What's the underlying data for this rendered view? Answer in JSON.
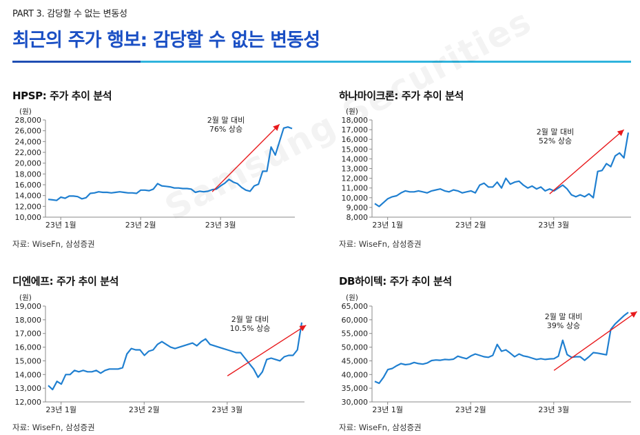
{
  "header": {
    "eyebrow": "PART 3. 감당할 수 없는 변동성",
    "title": "최근의 주가 행보: 감당할 수 없는 변동성"
  },
  "watermark": "Samsung Securities",
  "colors": {
    "line": "#1f7fd0",
    "arrow": "#e8191c",
    "accent": "#1a4fc4",
    "rule": "#2fb3dd"
  },
  "panels": [
    {
      "title": "HPSP: 주가 추이 분석",
      "source": "자료: WiseFn, 삼성증권",
      "chart_data": {
        "type": "line",
        "unit_label": "(원)",
        "ylim": [
          10000,
          28000
        ],
        "yticks": [
          10000,
          12000,
          14000,
          16000,
          18000,
          20000,
          22000,
          24000,
          26000,
          28000
        ],
        "ytick_labels": [
          "10,000",
          "12,000",
          "14,000",
          "16,000",
          "18,000",
          "20,000",
          "22,000",
          "24,000",
          "26,000",
          "28,000"
        ],
        "xtick_labels": [
          "23년 1월",
          "23년 2월",
          "23년 3월"
        ],
        "xtick_index": [
          2,
          21,
          40
        ],
        "annotation": "2월 말 대비\n76% 상승",
        "arrow": {
          "from": [
            39,
            14700
          ],
          "to": [
            55,
            27200
          ]
        },
        "values": [
          13300,
          13200,
          13100,
          13700,
          13500,
          13900,
          13900,
          13800,
          13400,
          13600,
          14400,
          14500,
          14700,
          14600,
          14600,
          14500,
          14600,
          14700,
          14600,
          14500,
          14500,
          14400,
          15000,
          15000,
          14900,
          15200,
          16200,
          15800,
          15700,
          15600,
          15400,
          15400,
          15300,
          15300,
          15200,
          14600,
          14800,
          14700,
          14800,
          15100,
          15200,
          15800,
          16300,
          17000,
          16500,
          16200,
          15500,
          15000,
          14800,
          15800,
          16100,
          18500,
          18500,
          23000,
          21500,
          24000,
          26500,
          26700,
          26400
        ]
      }
    },
    {
      "title": "하나마이크론: 주가 추이 분석",
      "source": "자료: WiseFn, 삼성증권",
      "chart_data": {
        "type": "line",
        "unit_label": "(원)",
        "ylim": [
          8000,
          18000
        ],
        "yticks": [
          8000,
          9000,
          10000,
          11000,
          12000,
          13000,
          14000,
          15000,
          16000,
          17000,
          18000
        ],
        "ytick_labels": [
          "8,000",
          "9,000",
          "10,000",
          "11,000",
          "12,000",
          "13,000",
          "14,000",
          "15,000",
          "16,000",
          "17,000",
          "18,000"
        ],
        "xtick_labels": [
          "23년 1월",
          "23년 2월",
          "23년 3월"
        ],
        "xtick_index": [
          2,
          21,
          40
        ],
        "annotation": "2월 말 대비\n52% 상승",
        "arrow": {
          "from": [
            40,
            10400
          ],
          "to": [
            57,
            17000
          ]
        },
        "values": [
          9400,
          9100,
          9500,
          9900,
          10100,
          10200,
          10500,
          10700,
          10600,
          10600,
          10700,
          10600,
          10500,
          10700,
          10800,
          10900,
          10700,
          10600,
          10800,
          10700,
          10500,
          10600,
          10700,
          10500,
          11300,
          11500,
          11100,
          11100,
          11600,
          11000,
          12000,
          11400,
          11600,
          11700,
          11300,
          11000,
          11200,
          10900,
          11100,
          10700,
          10900,
          10700,
          11000,
          11300,
          10900,
          10300,
          10100,
          10300,
          10100,
          10400,
          10000,
          12700,
          12800,
          13500,
          13200,
          14300,
          14600,
          14100,
          16700
        ]
      }
    },
    {
      "title": "디엔에프: 주가 추이 분석",
      "source": "자료: WiseFn, 삼성증권",
      "chart_data": {
        "type": "line",
        "unit_label": "(원)",
        "ylim": [
          12000,
          19000
        ],
        "yticks": [
          12000,
          13000,
          14000,
          15000,
          16000,
          17000,
          18000,
          19000
        ],
        "ytick_labels": [
          "12,000",
          "13,000",
          "14,000",
          "15,000",
          "16,000",
          "17,000",
          "18,000",
          "19,000"
        ],
        "xtick_labels": [
          "23년 1월",
          "23년 2월",
          "23년 3월"
        ],
        "xtick_index": [
          2,
          21,
          40
        ],
        "annotation": "2월 말 대비\n10.5% 상승",
        "arrow": {
          "from": [
            41,
            13900
          ],
          "to": [
            59,
            17600
          ]
        },
        "values": [
          13200,
          12900,
          13500,
          13300,
          14000,
          14000,
          14300,
          14200,
          14300,
          14200,
          14200,
          14300,
          14100,
          14300,
          14400,
          14400,
          14400,
          14500,
          15500,
          15900,
          15800,
          15800,
          15400,
          15700,
          15800,
          16200,
          16400,
          16200,
          16000,
          15900,
          16000,
          16100,
          16200,
          16300,
          16100,
          16400,
          16600,
          16200,
          16100,
          16000,
          15900,
          15800,
          15700,
          15600,
          15600,
          15200,
          14800,
          14400,
          13800,
          14200,
          15100,
          15200,
          15100,
          15000,
          15300,
          15400,
          15400,
          15800,
          17800
        ]
      }
    },
    {
      "title": "DB하이텍: 주가 추이 분석",
      "source": "자료: WiseFn, 삼성증권",
      "chart_data": {
        "type": "line",
        "unit_label": "(원)",
        "ylim": [
          30000,
          65000
        ],
        "yticks": [
          30000,
          35000,
          40000,
          45000,
          50000,
          55000,
          60000,
          65000
        ],
        "ytick_labels": [
          "30,000",
          "35,000",
          "40,000",
          "45,000",
          "50,000",
          "55,000",
          "60,000",
          "65,000"
        ],
        "xtick_labels": [
          "23년 1월",
          "23년 2월",
          "23년 3월"
        ],
        "xtick_index": [
          2,
          21,
          40
        ],
        "annotation": "2월 말 대비\n39% 상승",
        "arrow": {
          "from": [
            41,
            41500
          ],
          "to": [
            60,
            63000
          ]
        },
        "values": [
          37500,
          36800,
          39000,
          41800,
          42200,
          43200,
          44000,
          43600,
          43800,
          44400,
          44000,
          43800,
          44200,
          45100,
          45300,
          45200,
          45500,
          45400,
          45600,
          46700,
          46200,
          45800,
          46800,
          47500,
          47000,
          46500,
          46300,
          47000,
          51000,
          48500,
          49000,
          47800,
          46500,
          47500,
          46800,
          46500,
          46000,
          45500,
          45800,
          45500,
          45700,
          45800,
          46700,
          52500,
          47300,
          46300,
          46500,
          46500,
          45200,
          46500,
          48000,
          47800,
          47500,
          47200,
          56500,
          58500,
          60000,
          61500,
          62700
        ]
      }
    }
  ]
}
